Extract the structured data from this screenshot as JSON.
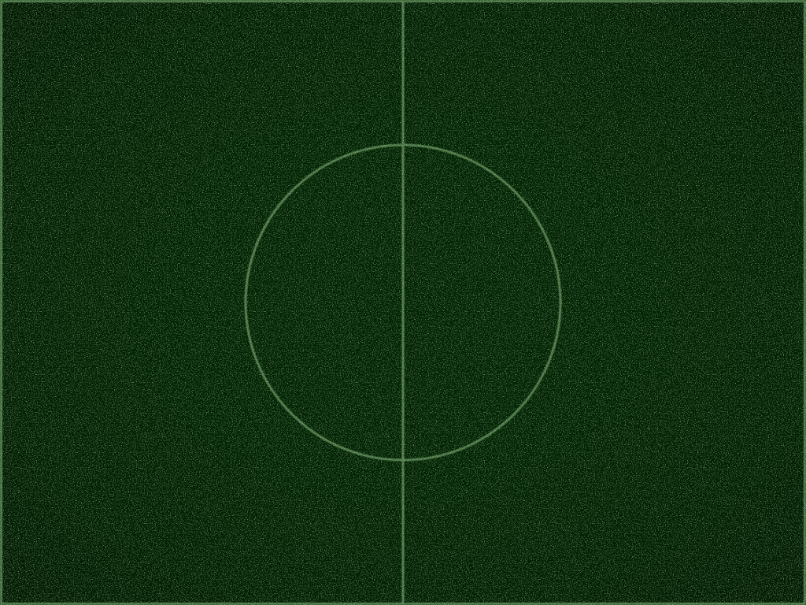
{
  "scene": "soccer-pitch-center",
  "colors": {
    "grass": "#022402",
    "grass_dark": "#011a01",
    "line": "#4f7a4a",
    "speckle": "#7fa67a"
  },
  "markings": [
    "boundary-lines",
    "halfway-line",
    "center-circle"
  ]
}
